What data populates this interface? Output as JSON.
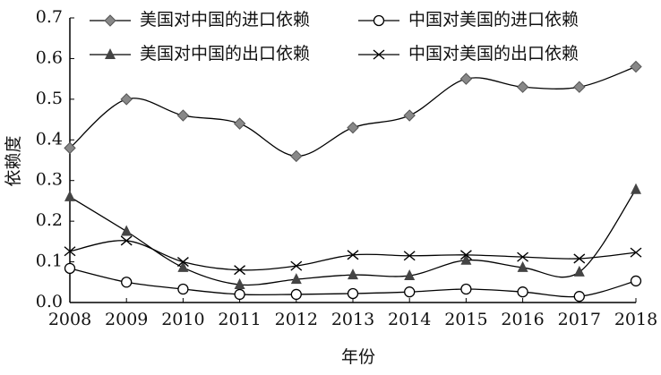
{
  "chart_data": {
    "type": "line",
    "x_label": "年份",
    "y_label": "依赖度",
    "x": [
      2008,
      2009,
      2010,
      2011,
      2012,
      2013,
      2014,
      2015,
      2016,
      2017,
      2018
    ],
    "xlim": [
      2008,
      2018
    ],
    "xticks": [
      2008,
      2009,
      2010,
      2011,
      2012,
      2013,
      2014,
      2015,
      2016,
      2017,
      2018
    ],
    "ylim": [
      0,
      0.7
    ],
    "yticks": [
      {
        "value": 0,
        "label": "0.0"
      },
      0.1,
      0.2,
      0.3,
      0.4,
      0.5,
      0.6,
      0.7
    ],
    "series": [
      {
        "name": "美国对中国的进口依赖",
        "color": "#000000",
        "marker": "diamond",
        "values": [
          0.38,
          0.5,
          0.46,
          0.44,
          0.36,
          0.43,
          0.46,
          0.55,
          0.53,
          0.53,
          0.58
        ]
      },
      {
        "name": "中国对美国的进口依赖",
        "color": "#000000",
        "marker": "circle",
        "values": [
          0.084,
          0.05,
          0.033,
          0.02,
          0.02,
          0.022,
          0.026,
          0.033,
          0.026,
          0.015,
          0.053
        ]
      },
      {
        "name": "美国对中国的出口依赖",
        "color": "#000000",
        "marker": "triangle",
        "values": [
          0.26,
          0.175,
          0.086,
          0.044,
          0.057,
          0.068,
          0.066,
          0.104,
          0.086,
          0.075,
          0.278
        ]
      },
      {
        "name": "中国对美国的出口依赖",
        "color": "#000000",
        "marker": "cross",
        "values": [
          0.126,
          0.152,
          0.1,
          0.08,
          0.09,
          0.117,
          0.115,
          0.117,
          0.112,
          0.108,
          0.123
        ]
      }
    ]
  }
}
